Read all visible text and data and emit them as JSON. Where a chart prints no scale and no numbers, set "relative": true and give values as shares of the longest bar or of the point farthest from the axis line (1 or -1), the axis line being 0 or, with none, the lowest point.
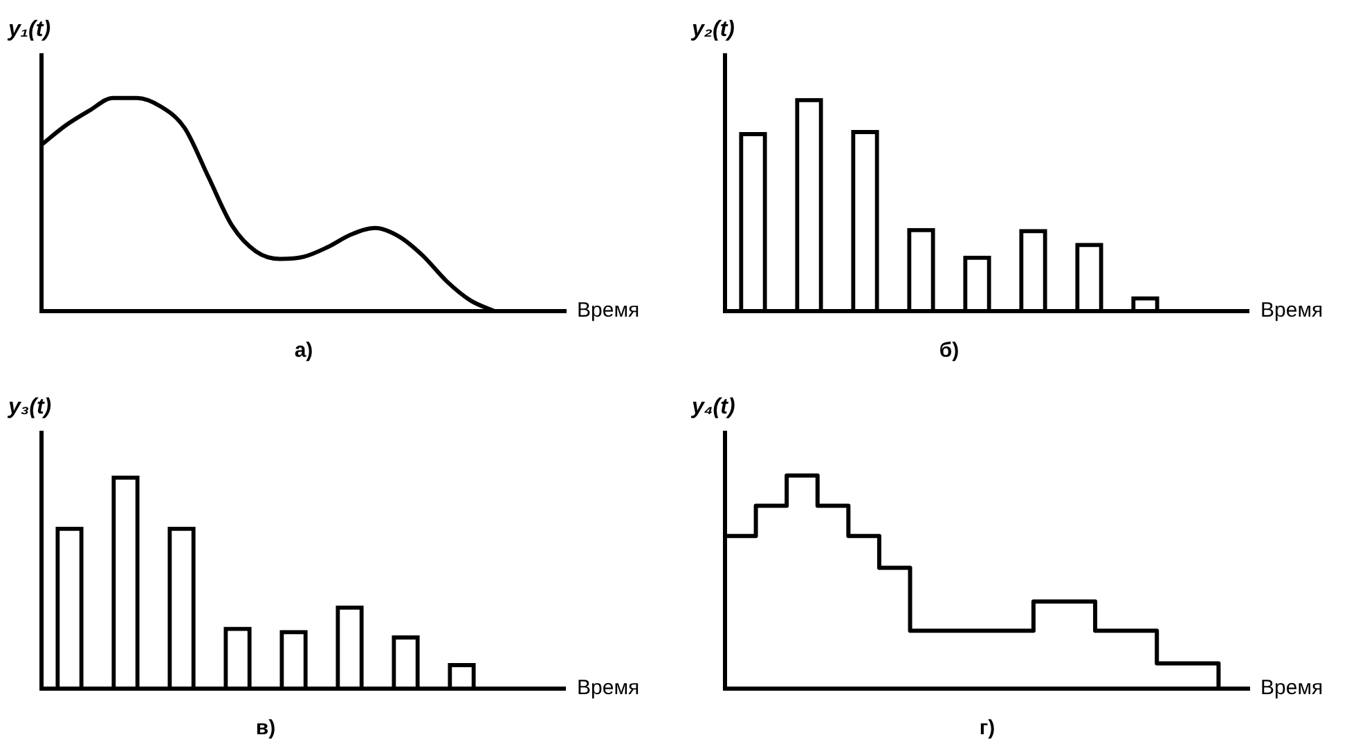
{
  "chart_data": [
    {
      "type": "line",
      "title": "а)",
      "xlabel": "Время",
      "ylabel": "y₁(t)",
      "relative": true,
      "color": "#000000",
      "categories": [
        null,
        null,
        null,
        null,
        null,
        null,
        null,
        null,
        null,
        null,
        null,
        null,
        null,
        null,
        null,
        null,
        null,
        null,
        null,
        null,
        null,
        null,
        null
      ],
      "values": [
        0.78,
        0.87,
        0.94,
        1.0,
        1.0,
        0.96,
        0.86,
        0.63,
        0.4,
        0.28,
        0.245,
        0.255,
        0.3,
        0.36,
        0.39,
        0.35,
        0.26,
        0.14,
        0.05,
        0,
        null,
        null,
        null
      ]
    },
    {
      "type": "bar",
      "title": "б)",
      "xlabel": "Время",
      "ylabel": "y₂(t)",
      "relative": true,
      "color": "#000000",
      "categories": [
        null,
        null,
        null,
        null,
        null,
        null,
        null,
        null
      ],
      "values": [
        0.84,
        1.0,
        0.85,
        0.39,
        0.26,
        0.385,
        0.32,
        0.07
      ]
    },
    {
      "type": "bar",
      "title": "в)",
      "xlabel": "Время",
      "ylabel": "y₃(t)",
      "relative": true,
      "color": "#000000",
      "categories": [
        null,
        null,
        null,
        null,
        null,
        null,
        null,
        null
      ],
      "values": [
        0.76,
        1.0,
        0.76,
        0.29,
        0.275,
        0.39,
        0.25,
        0.12
      ]
    },
    {
      "type": "step",
      "title": "г)",
      "xlabel": "Время",
      "ylabel": "y₄(t)",
      "relative": true,
      "color": "#000000",
      "categories": [
        null,
        null,
        null,
        null,
        null,
        null,
        null,
        null,
        null,
        null,
        null,
        null,
        null,
        null,
        null,
        null,
        null,
        null
      ],
      "values": [
        0.716,
        0.858,
        1.0,
        0.858,
        0.716,
        0.567,
        0.272,
        0.272,
        0.272,
        0.272,
        0.409,
        0.409,
        0.272,
        0.272,
        0.118,
        0.118,
        0,
        null
      ]
    }
  ]
}
